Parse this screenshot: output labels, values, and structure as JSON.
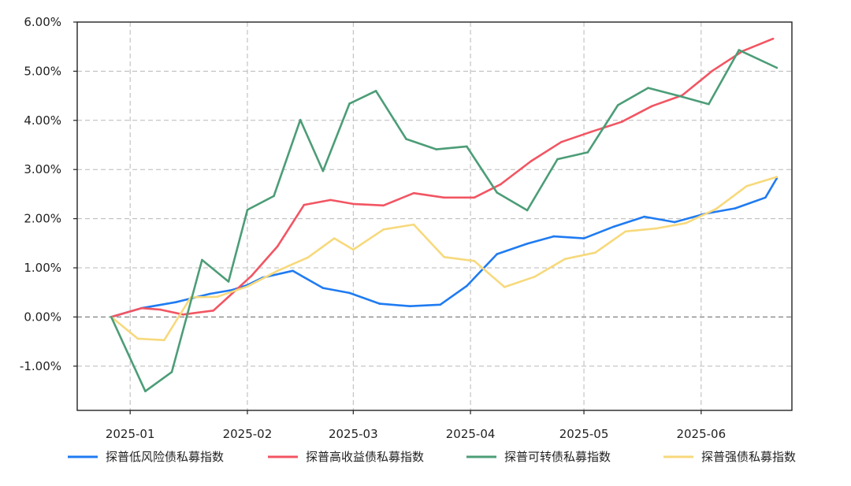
{
  "chart_data": {
    "type": "line",
    "title": "",
    "xlabel": "",
    "ylabel": "",
    "x_ticks": [
      "2025-01",
      "2025-02",
      "2025-03",
      "2025-04",
      "2025-05",
      "2025-06"
    ],
    "x_tick_dates": [
      "2025-01-01",
      "2025-02-01",
      "2025-03-01",
      "2025-04-01",
      "2025-05-01",
      "2025-06-01"
    ],
    "x_range": [
      "2024-12-18",
      "2025-06-25"
    ],
    "y_ticks": [
      "-1.00%",
      "0.00%",
      "1.00%",
      "2.00%",
      "3.00%",
      "4.00%",
      "5.00%",
      "6.00%"
    ],
    "y_tick_values": [
      -1,
      0,
      1,
      2,
      3,
      4,
      5,
      6
    ],
    "ylim": [
      -1.9,
      6.0
    ],
    "y_unit": "%",
    "grid": true,
    "legend_position": "bottom",
    "x": [
      "2024-12-27",
      "2025-01-03",
      "2025-01-10",
      "2025-01-17",
      "2025-01-24",
      "2025-01-31",
      "2025-02-07",
      "2025-02-14",
      "2025-02-21",
      "2025-02-28",
      "2025-03-07",
      "2025-03-14",
      "2025-03-21",
      "2025-03-28",
      "2025-04-04",
      "2025-04-11",
      "2025-04-18",
      "2025-04-25",
      "2025-05-02",
      "2025-05-09",
      "2025-05-16",
      "2025-05-23",
      "2025-05-30",
      "2025-06-06",
      "2025-06-13",
      "2025-06-20"
    ],
    "series": [
      {
        "name": "探普低风险债私募指数",
        "color": "#1f7bf2",
        "x": [
          "2024-12-27",
          "2025-01-04",
          "2025-01-13",
          "2025-01-22",
          "2025-01-28",
          "2025-02-01",
          "2025-02-05",
          "2025-02-13",
          "2025-02-21",
          "2025-02-28",
          "2025-03-08",
          "2025-03-16",
          "2025-03-24",
          "2025-03-31",
          "2025-04-08",
          "2025-04-16",
          "2025-04-23",
          "2025-05-01",
          "2025-05-09",
          "2025-05-17",
          "2025-05-25",
          "2025-06-02",
          "2025-06-10",
          "2025-06-18",
          "2025-06-21"
        ],
        "values": [
          0.0,
          0.18,
          0.3,
          0.47,
          0.55,
          0.65,
          0.8,
          0.94,
          0.59,
          0.49,
          0.27,
          0.22,
          0.25,
          0.63,
          1.28,
          1.49,
          1.64,
          1.6,
          1.84,
          2.04,
          1.93,
          2.1,
          2.21,
          2.43,
          2.82
        ]
      },
      {
        "name": "探普高收益债私募指数",
        "color": "#f25563",
        "x": [
          "2024-12-27",
          "2025-01-04",
          "2025-01-09",
          "2025-01-15",
          "2025-01-23",
          "2025-02-02",
          "2025-02-09",
          "2025-02-16",
          "2025-02-23",
          "2025-03-01",
          "2025-03-09",
          "2025-03-17",
          "2025-03-25",
          "2025-04-02",
          "2025-04-09",
          "2025-04-17",
          "2025-04-25",
          "2025-05-03",
          "2025-05-11",
          "2025-05-19",
          "2025-05-27",
          "2025-06-04",
          "2025-06-12",
          "2025-06-20"
        ],
        "values": [
          0.0,
          0.18,
          0.15,
          0.05,
          0.13,
          0.83,
          1.44,
          2.28,
          2.38,
          2.3,
          2.27,
          2.52,
          2.43,
          2.43,
          2.7,
          3.17,
          3.56,
          3.77,
          3.97,
          4.29,
          4.51,
          5.01,
          5.41,
          5.66
        ]
      },
      {
        "name": "探普可转债私募指数",
        "color": "#4c9d77",
        "x": [
          "2024-12-27",
          "2025-01-05",
          "2025-01-12",
          "2025-01-20",
          "2025-01-27",
          "2025-02-01",
          "2025-02-08",
          "2025-02-15",
          "2025-02-21",
          "2025-02-28",
          "2025-03-07",
          "2025-03-15",
          "2025-03-23",
          "2025-03-31",
          "2025-04-08",
          "2025-04-16",
          "2025-04-24",
          "2025-05-02",
          "2025-05-10",
          "2025-05-18",
          "2025-05-26",
          "2025-06-03",
          "2025-06-11",
          "2025-06-21"
        ],
        "values": [
          0.0,
          -1.51,
          -1.12,
          1.16,
          0.72,
          2.18,
          2.46,
          4.01,
          2.97,
          4.34,
          4.6,
          3.62,
          3.41,
          3.47,
          2.53,
          2.17,
          3.21,
          3.35,
          4.31,
          4.66,
          4.5,
          4.33,
          5.43,
          5.07
        ]
      },
      {
        "name": "探普强债私募指数",
        "color": "#f7d97c",
        "x": [
          "2024-12-27",
          "2025-01-03",
          "2025-01-10",
          "2025-01-17",
          "2025-01-24",
          "2025-02-01",
          "2025-02-09",
          "2025-02-17",
          "2025-02-24",
          "2025-03-01",
          "2025-03-09",
          "2025-03-17",
          "2025-03-25",
          "2025-04-02",
          "2025-04-10",
          "2025-04-18",
          "2025-04-26",
          "2025-05-04",
          "2025-05-12",
          "2025-05-20",
          "2025-05-28",
          "2025-06-05",
          "2025-06-13",
          "2025-06-21"
        ],
        "values": [
          0.0,
          -0.44,
          -0.47,
          0.4,
          0.41,
          0.62,
          0.94,
          1.21,
          1.6,
          1.37,
          1.78,
          1.88,
          1.22,
          1.14,
          0.61,
          0.82,
          1.18,
          1.31,
          1.74,
          1.8,
          1.91,
          2.2,
          2.66,
          2.85
        ]
      }
    ]
  }
}
